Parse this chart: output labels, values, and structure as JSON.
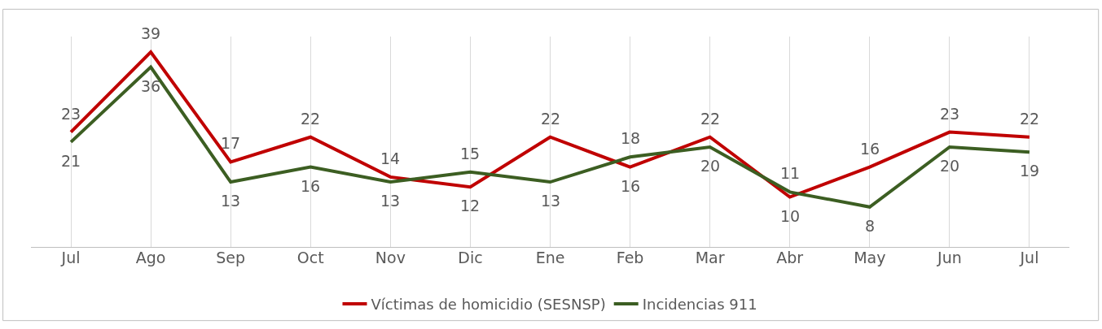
{
  "chart_data": {
    "type": "line",
    "categories": [
      "Jul",
      "Ago",
      "Sep",
      "Oct",
      "Nov",
      "Dic",
      "Ene",
      "Feb",
      "Mar",
      "Abr",
      "May",
      "Jun",
      "Jul"
    ],
    "series": [
      {
        "name": "Víctimas de homicidio (SESNSP)",
        "color": "#c00000",
        "values": [
          23,
          39,
          17,
          22,
          14,
          12,
          22,
          16,
          22,
          10,
          16,
          23,
          22
        ]
      },
      {
        "name": "Incidencias 911",
        "color": "#3c5e22",
        "values": [
          21,
          36,
          13,
          16,
          13,
          15,
          13,
          18,
          20,
          11,
          8,
          20,
          19
        ]
      }
    ],
    "data_labels": true,
    "grid": "x",
    "legend": "bottom",
    "marker": "none",
    "line_style": "solid"
  }
}
